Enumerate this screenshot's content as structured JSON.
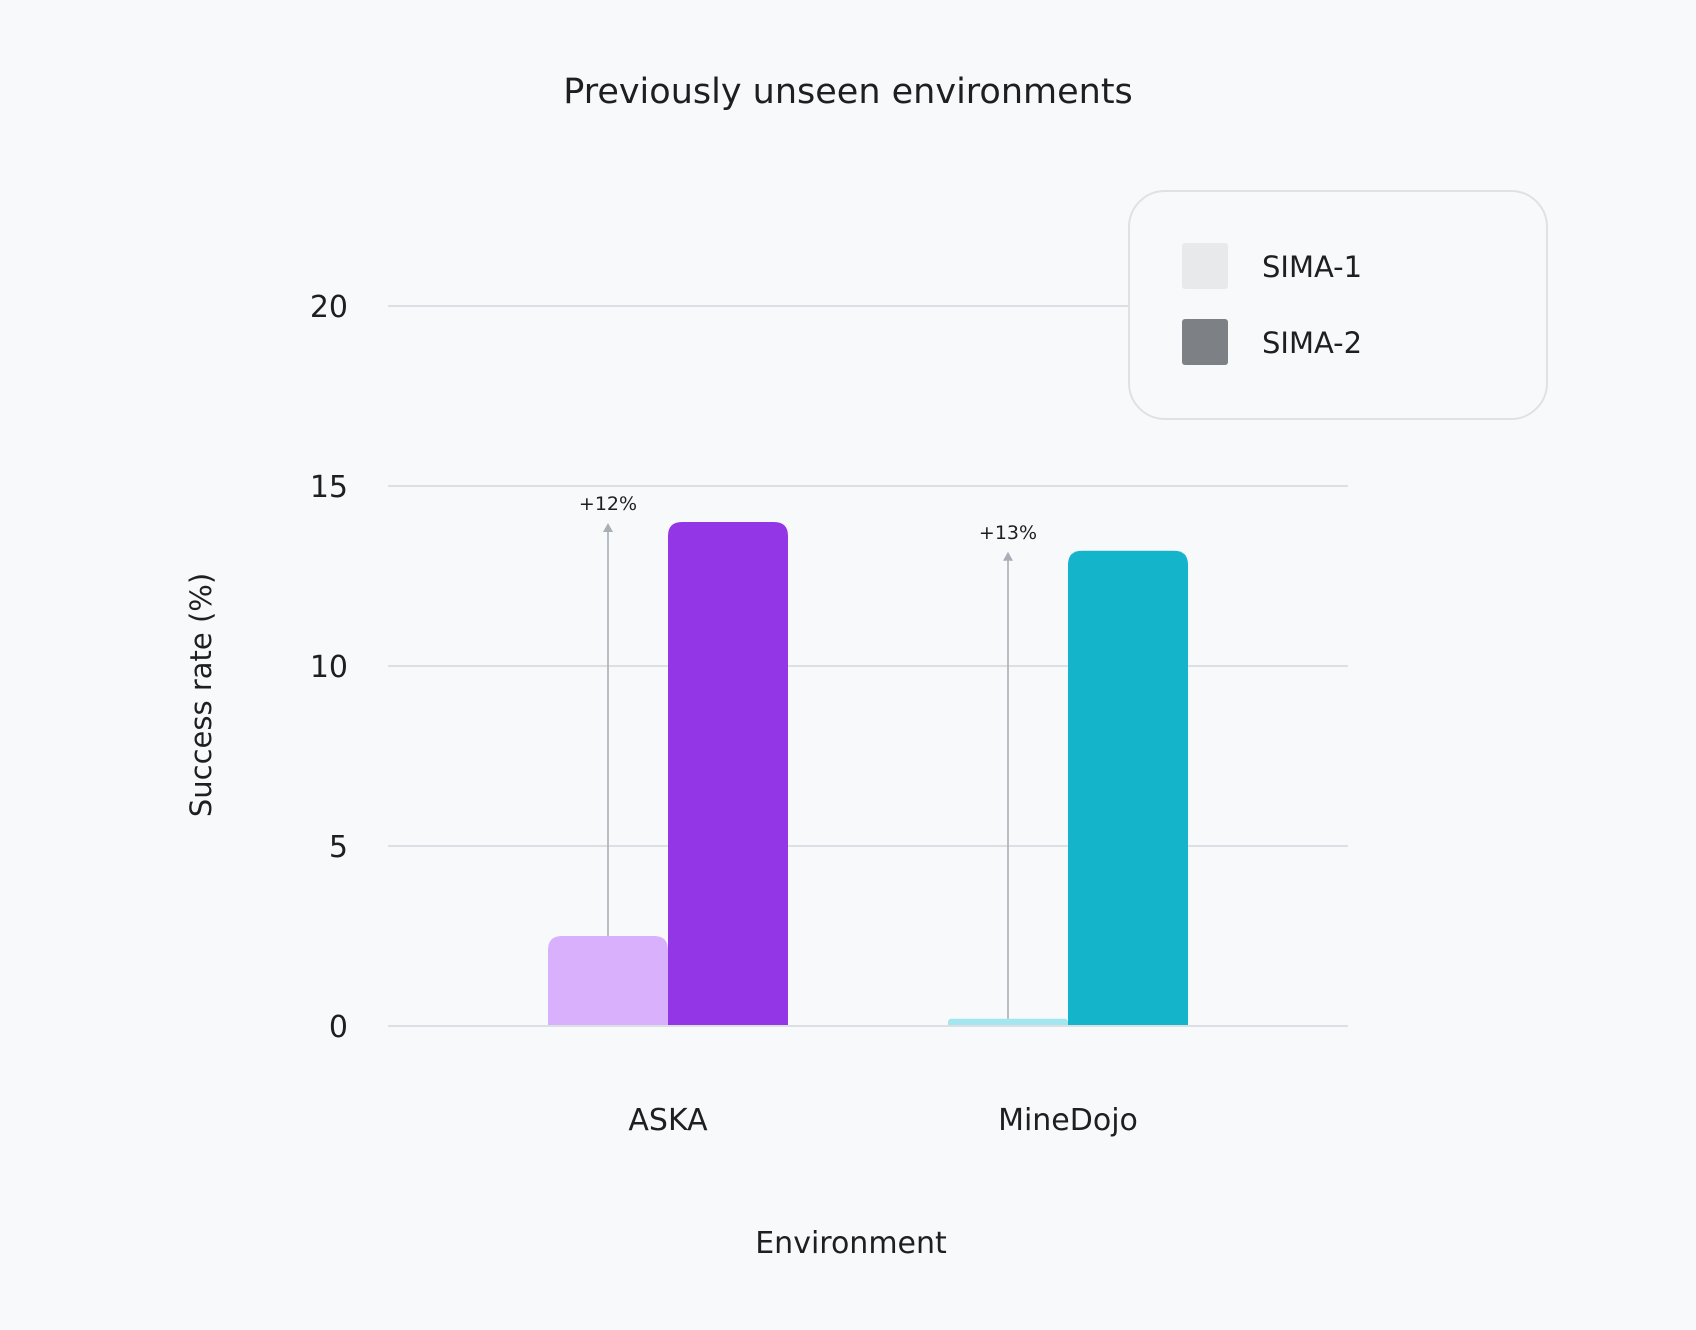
{
  "chart_data": {
    "type": "bar",
    "title": "Previously unseen environments",
    "xlabel": "Environment",
    "ylabel": "Success rate (%)",
    "ylim": [
      0,
      20
    ],
    "yticks": [
      0,
      5,
      10,
      15,
      20
    ],
    "grid": true,
    "legend_position": "top-right",
    "categories": [
      "ASKA",
      "MineDojo"
    ],
    "series": [
      {
        "name": "SIMA-1",
        "values": [
          2.5,
          0.2
        ],
        "colors": [
          "#d9b0fb",
          "#a3e6f0"
        ],
        "legend_color": "#e8e9eb"
      },
      {
        "name": "SIMA-2",
        "values": [
          14.0,
          13.2
        ],
        "colors": [
          "#9337e6",
          "#14b4cb"
        ],
        "legend_color": "#7d8186"
      }
    ],
    "annotations": [
      "+12%",
      "+13%"
    ]
  }
}
